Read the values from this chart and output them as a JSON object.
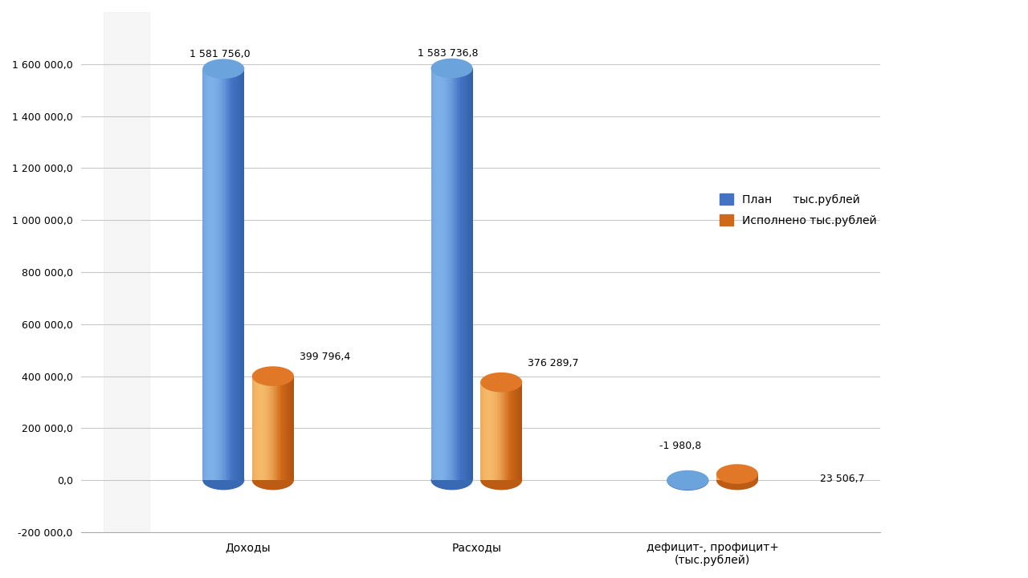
{
  "categories": [
    "Доходы",
    "Расходы",
    "дефицит-, профицит+\n(тыс.рублей)"
  ],
  "plan_values": [
    1581756.0,
    1583736.8,
    -1980.8
  ],
  "exec_values": [
    399796.4,
    376289.7,
    23506.7
  ],
  "plan_labels": [
    "1 581 756,0",
    "1 583 736,8",
    "-1 980,8"
  ],
  "exec_labels": [
    "399 796,4",
    "376 289,7",
    "23 506,7"
  ],
  "plan_color_light": "#7EB0E8",
  "plan_color_mid": "#5B8FD4",
  "plan_color_body": "#4472C4",
  "plan_color_dark": "#2E5FA3",
  "plan_top_color": "#6BA3DD",
  "exec_color_light": "#F5B96A",
  "exec_color_mid": "#E88A30",
  "exec_color_body": "#D06818",
  "exec_color_dark": "#A84E10",
  "exec_top_color": "#E07828",
  "ylim_min": -200000,
  "ylim_max": 1800000,
  "yticks": [
    -200000,
    0,
    200000,
    400000,
    600000,
    800000,
    1000000,
    1200000,
    1400000,
    1600000
  ],
  "ytick_labels": [
    "-200 000,0",
    "0,0",
    "200 000,0",
    "400 000,0",
    "600 000,0",
    "800 000,0",
    "1 000 000,0",
    "1 200 000,0",
    "1 400 000,0",
    "1 600 000,0"
  ],
  "legend_plan": "План      тыс.рублей",
  "legend_exec": "Исполнено тыс.рублей",
  "background_color": "#FFFFFF",
  "grid_color": "#C8C8C8"
}
